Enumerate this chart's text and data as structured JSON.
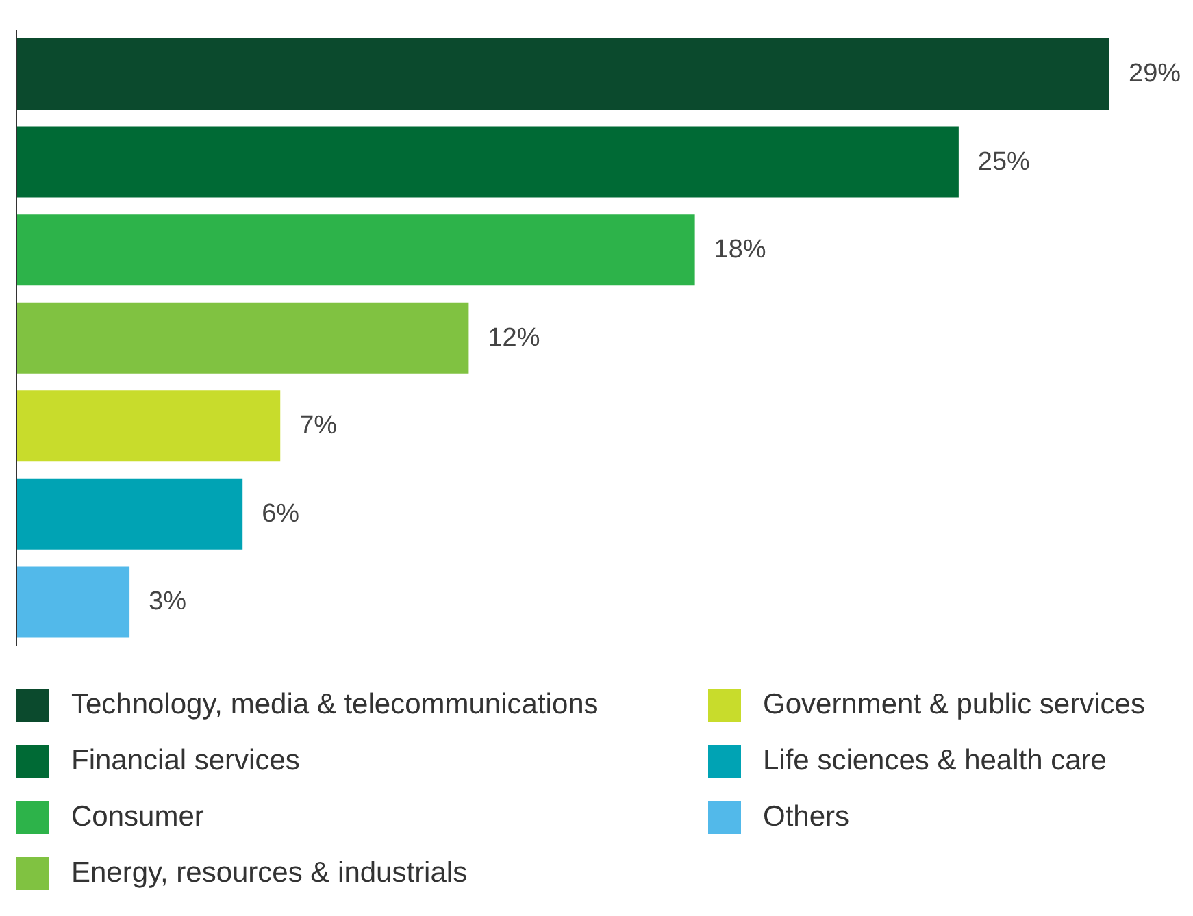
{
  "chart_data": {
    "type": "bar",
    "orientation": "horizontal",
    "stacked": true,
    "categories": [
      null,
      null,
      null,
      null,
      null,
      null,
      null
    ],
    "series": [
      {
        "name": "Technology, media & telecommunications",
        "color": "#0b4a2d",
        "values": [
          29,
          null,
          null,
          null,
          null,
          null,
          null
        ],
        "value_labels": [
          "29%",
          null,
          null,
          null,
          null,
          null,
          null
        ]
      },
      {
        "name": "Financial services",
        "color": "#006a35",
        "values": [
          null,
          25,
          null,
          null,
          null,
          null,
          null
        ],
        "value_labels": [
          null,
          "25%",
          null,
          null,
          null,
          null,
          null
        ]
      },
      {
        "name": "Consumer",
        "color": "#2db34a",
        "values": [
          null,
          null,
          18,
          null,
          null,
          null,
          null
        ],
        "value_labels": [
          null,
          null,
          "18%",
          null,
          null,
          null,
          null
        ]
      },
      {
        "name": "Energy, resources & industrials",
        "color": "#80c241",
        "values": [
          null,
          null,
          null,
          12,
          null,
          null,
          null
        ],
        "value_labels": [
          null,
          null,
          null,
          "12%",
          null,
          null,
          null
        ]
      },
      {
        "name": "Government & public services",
        "color": "#c8dc2c",
        "values": [
          null,
          null,
          null,
          null,
          7,
          null,
          null
        ],
        "value_labels": [
          null,
          null,
          null,
          null,
          "7%",
          null,
          null
        ]
      },
      {
        "name": "Life sciences & health care",
        "color": "#00a3b4",
        "values": [
          null,
          null,
          null,
          null,
          null,
          6,
          null
        ],
        "value_labels": [
          null,
          null,
          null,
          null,
          null,
          "6%",
          null
        ]
      },
      {
        "name": "Others",
        "color": "#52b9ea",
        "values": [
          null,
          null,
          null,
          null,
          null,
          null,
          3
        ],
        "value_labels": [
          null,
          null,
          null,
          null,
          null,
          null,
          "3%"
        ]
      }
    ],
    "tick_labels": false,
    "legend": "bottom"
  }
}
